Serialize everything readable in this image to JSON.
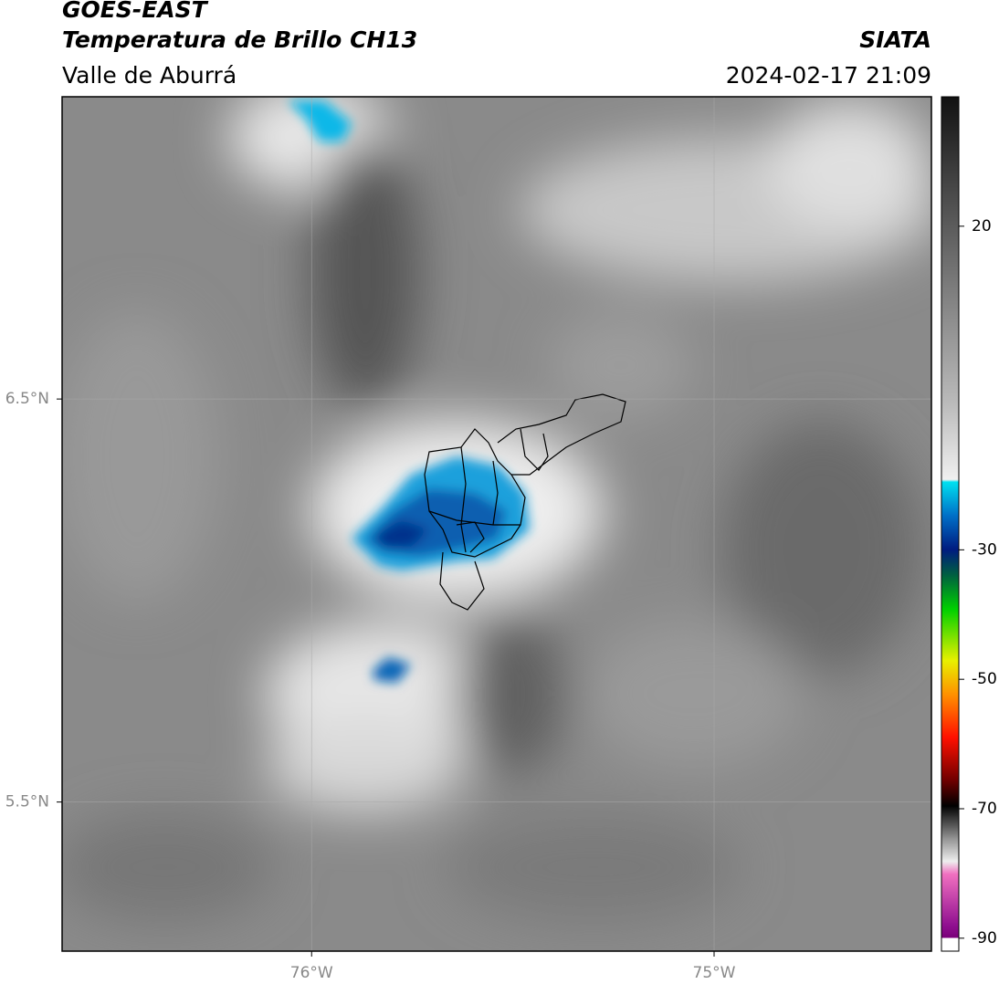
{
  "map": {
    "title": "GOES-EAST",
    "subtitle": "Temperatura de Brillo CH13",
    "region": "Valle de Aburrá",
    "source": "SIATA",
    "datetime": "2024-02-17 21:09",
    "xlim": [
      -76.62,
      -74.46
    ],
    "ylim": [
      5.13,
      7.25
    ],
    "xticks": [
      {
        "value": -76,
        "label": "76°W"
      },
      {
        "value": -75,
        "label": "75°W"
      }
    ],
    "yticks": [
      {
        "value": 6.5,
        "label": "6.5°N"
      },
      {
        "value": 5.5,
        "label": "5.5°N"
      }
    ],
    "colorbar": {
      "lim": [
        -92,
        40
      ],
      "ticks": [
        20,
        -30,
        -50,
        -70,
        -90
      ]
    }
  }
}
